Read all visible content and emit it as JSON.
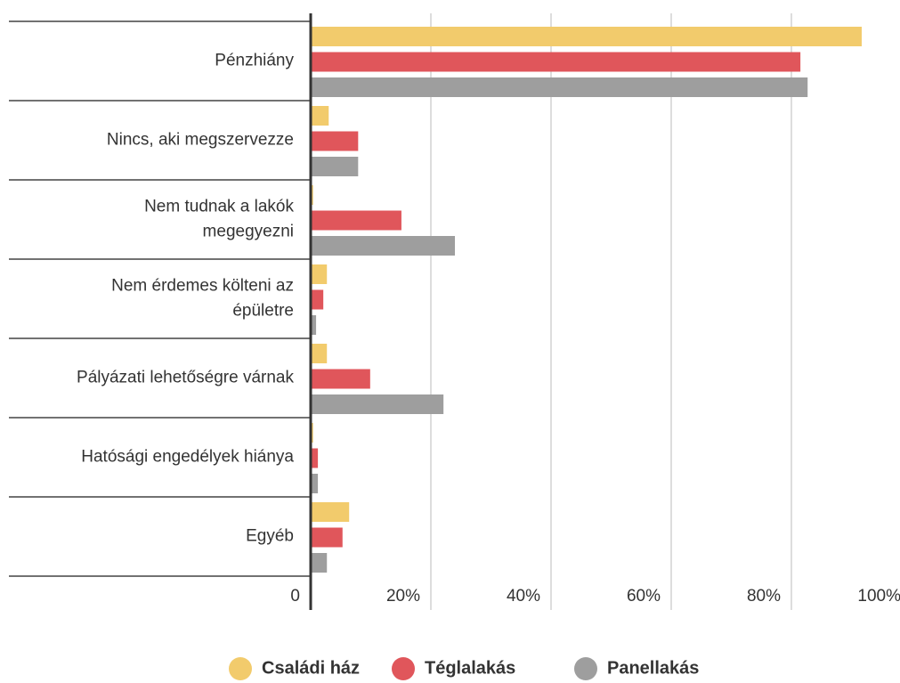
{
  "chart_data": {
    "type": "bar",
    "orientation": "horizontal",
    "categories": [
      "Pénzhiány",
      "Nincs, aki megszervezze",
      "Nem tudnak a lakók\nmegegyezni",
      "Nem érdemes költeni az\népületre",
      "Pályázati lehetőségre várnak",
      "Hatósági engedélyek hiánya",
      "Egyéb"
    ],
    "series": [
      {
        "name": "Családi ház",
        "color": "#f2cb6c",
        "values": [
          91.7,
          3,
          0.4,
          2.7,
          2.7,
          0.4,
          6.4
        ]
      },
      {
        "name": "Téglalakás",
        "color": "#e0565b",
        "values": [
          81.5,
          7.9,
          15.1,
          2.1,
          9.9,
          1.2,
          5.3
        ]
      },
      {
        "name": "Panellakás",
        "color": "#9e9e9e",
        "values": [
          82.7,
          7.9,
          24,
          0.9,
          22.1,
          1.2,
          2.7
        ]
      }
    ],
    "xlim": [
      0,
      100
    ],
    "xticks": [
      0,
      {
        "value": 20,
        "label": "20%"
      },
      {
        "value": 40,
        "label": "40%"
      },
      {
        "value": 60,
        "label": "60%"
      },
      {
        "value": 80,
        "label": "80%"
      },
      {
        "value": 100,
        "label": "100%"
      }
    ],
    "grid": true,
    "legend": "bottom"
  }
}
